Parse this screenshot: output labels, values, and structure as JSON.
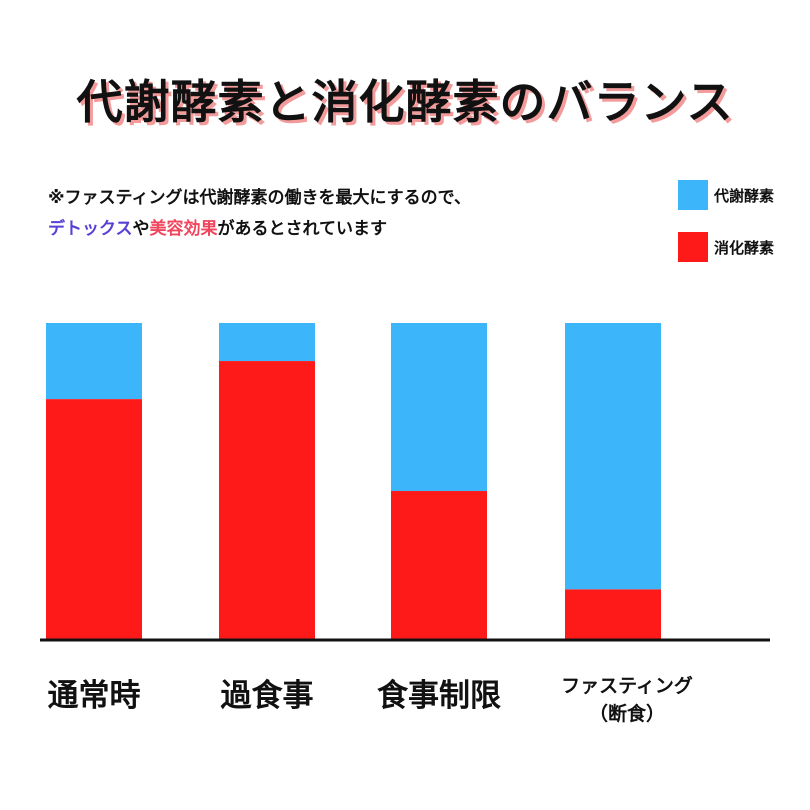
{
  "title": "代謝酵素と消化酵素のバランス",
  "note": {
    "line1": "※ファスティングは代謝酵素の働きを最大にするので、",
    "detox": "デトックス",
    "ya": "や",
    "beauty": "美容効果",
    "rest": "があるとされています"
  },
  "colors": {
    "metabolic": "#3db5fb",
    "digestive": "#ff1a1a",
    "detox_text": "#5a3fd6",
    "beauty_text": "#f0455c"
  },
  "chart_data": {
    "type": "bar",
    "stacked": true,
    "categories": [
      "通常時",
      "過食事",
      "食事制限",
      "ファスティング\n（断食）"
    ],
    "series": [
      {
        "name": "消化酵素",
        "color": "#ff1a1a",
        "values": [
          76,
          88,
          47,
          16
        ]
      },
      {
        "name": "代謝酵素",
        "color": "#3db5fb",
        "values": [
          24,
          12,
          53,
          84
        ]
      }
    ],
    "ylim": [
      0,
      100
    ],
    "legend": "top-right",
    "grid": false
  }
}
